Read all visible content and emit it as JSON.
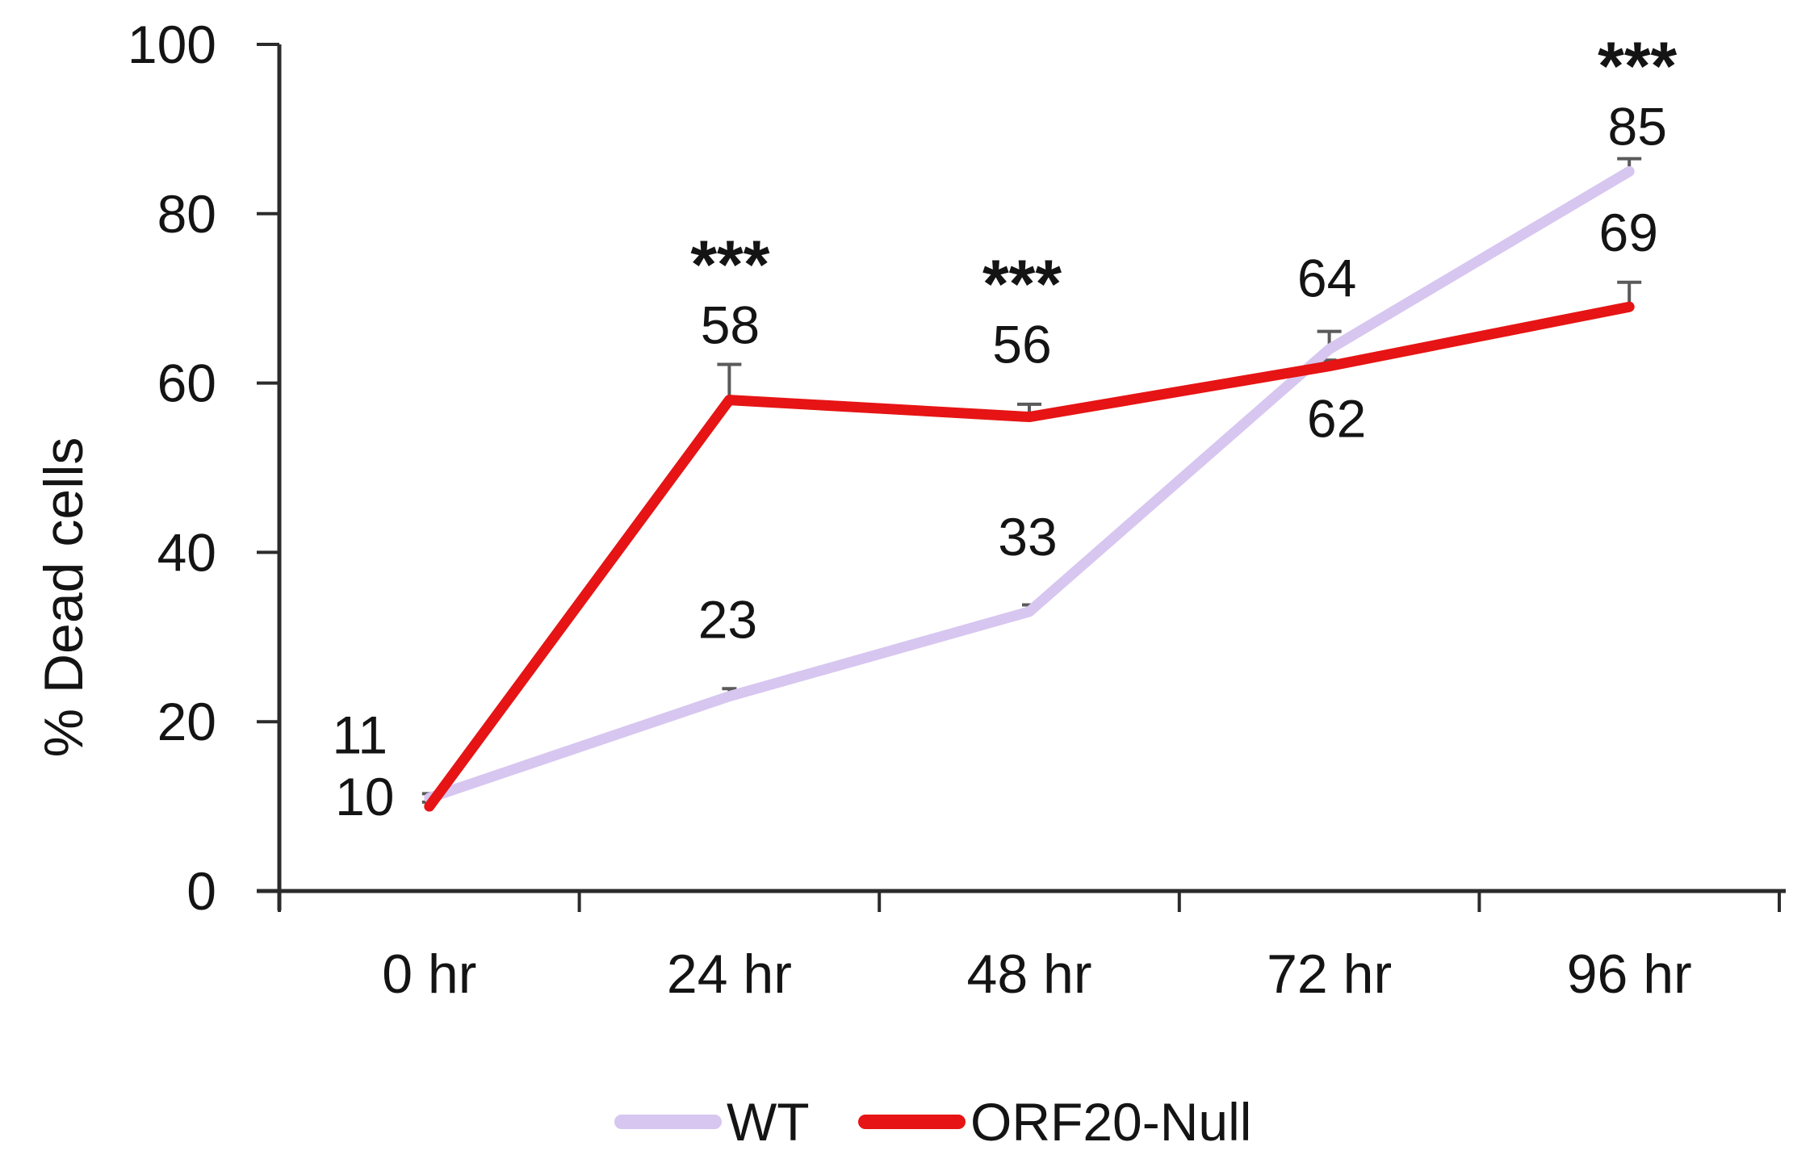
{
  "chart_data": {
    "type": "line",
    "title": "",
    "xlabel": "",
    "ylabel": "% Dead cells",
    "ylim": [
      0,
      100
    ],
    "yticks": [
      0,
      20,
      40,
      60,
      80,
      100
    ],
    "grid": false,
    "legend_position": "bottom",
    "categories": [
      "0 hr",
      "24 hr",
      "48 hr",
      "72 hr",
      "96 hr"
    ],
    "series": [
      {
        "name": "WT",
        "color": "#d7c6f0",
        "values": [
          11,
          23,
          33,
          64,
          85
        ],
        "error_up": [
          0.5,
          0.9,
          0.8,
          2.1,
          1.5
        ]
      },
      {
        "name": "ORF20-Null",
        "color": "#e61414",
        "values": [
          10,
          58,
          56,
          62,
          69
        ],
        "error_up": [
          0.5,
          4.2,
          1.5,
          0.7,
          2.9
        ]
      }
    ],
    "point_labels_shown": true,
    "significance": [
      {
        "category": "24 hr",
        "series": "ORF20-Null",
        "text": "***"
      },
      {
        "category": "48 hr",
        "series": "ORF20-Null",
        "text": "***"
      },
      {
        "category": "96 hr",
        "series": "WT",
        "text": "***"
      }
    ],
    "colors": {
      "axis": "#2b2b2b",
      "error_bar": "#5a5a5a",
      "text": "#141414",
      "background": "#ffffff"
    }
  }
}
